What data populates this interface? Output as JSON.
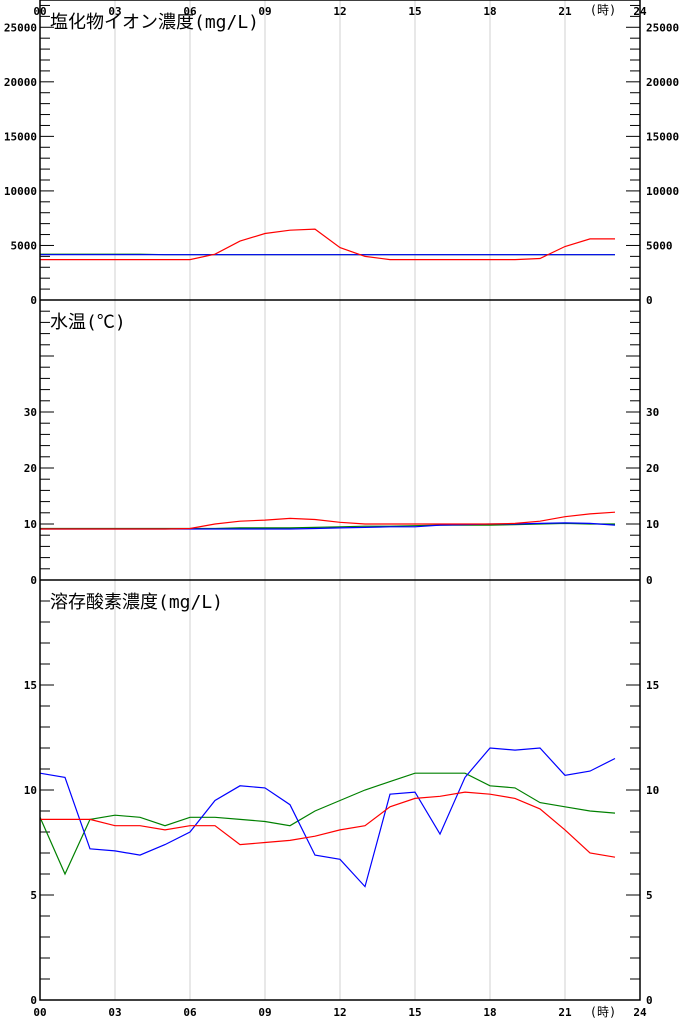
{
  "x_axis": {
    "ticks": [
      "00",
      "03",
      "06",
      "09",
      "12",
      "15",
      "18",
      "21",
      "24"
    ],
    "unit_label": "(時)"
  },
  "chart_data": [
    {
      "type": "line",
      "title": "塩化物イオン濃度(mg/L)",
      "ylim": [
        0,
        27500
      ],
      "yticks": [
        0,
        5000,
        10000,
        15000,
        20000,
        25000
      ],
      "grid": "vertical",
      "x": [
        0,
        1,
        2,
        3,
        4,
        5,
        6,
        7,
        8,
        9,
        10,
        11,
        12,
        13,
        14,
        15,
        16,
        17,
        18,
        19,
        20,
        21,
        22,
        23
      ],
      "series": [
        {
          "color": "#008000",
          "values": [
            4200,
            4200,
            4200,
            4200,
            4200,
            4150,
            4150,
            4150,
            4150,
            4150,
            4150,
            4150,
            4150,
            4150,
            4150,
            4150,
            4150,
            4150,
            4150,
            4150,
            4150,
            4150,
            4150,
            4150
          ]
        },
        {
          "color": "#0000ff",
          "values": [
            4150,
            4150,
            4150,
            4150,
            4150,
            4150,
            4150,
            4150,
            4150,
            4150,
            4150,
            4150,
            4150,
            4150,
            4150,
            4150,
            4150,
            4150,
            4150,
            4150,
            4150,
            4150,
            4150,
            4150
          ]
        },
        {
          "color": "#ff0000",
          "values": [
            3700,
            3700,
            3700,
            3700,
            3700,
            3700,
            3700,
            4200,
            5400,
            6100,
            6400,
            6500,
            4800,
            4000,
            3700,
            3700,
            3700,
            3700,
            3700,
            3700,
            3800,
            4900,
            5600,
            5600
          ]
        }
      ]
    },
    {
      "type": "line",
      "title": "水温(℃)",
      "ylim": [
        0,
        50
      ],
      "yticks": [
        0,
        10,
        20,
        30
      ],
      "grid": "vertical",
      "x": [
        0,
        1,
        2,
        3,
        4,
        5,
        6,
        7,
        8,
        9,
        10,
        11,
        12,
        13,
        14,
        15,
        16,
        17,
        18,
        19,
        20,
        21,
        22,
        23
      ],
      "series": [
        {
          "color": "#008000",
          "values": [
            9.2,
            9.2,
            9.2,
            9.2,
            9.2,
            9.2,
            9.2,
            9.2,
            9.3,
            9.3,
            9.3,
            9.4,
            9.5,
            9.6,
            9.6,
            9.7,
            9.8,
            9.8,
            9.8,
            9.9,
            10.0,
            10.1,
            10.0,
            10.0
          ]
        },
        {
          "color": "#0000ff",
          "values": [
            9.1,
            9.1,
            9.1,
            9.1,
            9.1,
            9.1,
            9.1,
            9.1,
            9.1,
            9.1,
            9.1,
            9.2,
            9.3,
            9.4,
            9.5,
            9.5,
            9.8,
            9.9,
            10.0,
            10.0,
            10.1,
            10.2,
            10.1,
            9.8
          ]
        },
        {
          "color": "#ff0000",
          "values": [
            9.1,
            9.1,
            9.1,
            9.1,
            9.1,
            9.1,
            9.2,
            10.0,
            10.5,
            10.7,
            11.0,
            10.8,
            10.3,
            10.0,
            10.0,
            10.0,
            10.0,
            10.0,
            10.0,
            10.1,
            10.5,
            11.3,
            11.8,
            12.1
          ]
        }
      ]
    },
    {
      "type": "line",
      "title": "溶存酸素濃度(mg/L)",
      "ylim": [
        0,
        20
      ],
      "yticks": [
        0,
        5,
        10,
        15
      ],
      "grid": "vertical",
      "x": [
        0,
        1,
        2,
        3,
        4,
        5,
        6,
        7,
        8,
        9,
        10,
        11,
        12,
        13,
        14,
        15,
        16,
        17,
        18,
        19,
        20,
        21,
        22,
        23
      ],
      "series": [
        {
          "color": "#008000",
          "values": [
            8.7,
            6.0,
            8.6,
            8.8,
            8.7,
            8.3,
            8.7,
            8.7,
            8.6,
            8.5,
            8.3,
            9.0,
            9.5,
            10.0,
            10.4,
            10.8,
            10.8,
            10.8,
            10.2,
            10.1,
            9.4,
            9.2,
            9.0,
            8.9
          ]
        },
        {
          "color": "#0000ff",
          "values": [
            10.8,
            10.6,
            7.2,
            7.1,
            6.9,
            7.4,
            8.0,
            9.5,
            10.2,
            10.1,
            9.3,
            6.9,
            6.7,
            5.4,
            9.8,
            9.9,
            7.9,
            10.6,
            12.0,
            11.9,
            12.0,
            10.7,
            10.9,
            11.5
          ]
        },
        {
          "color": "#ff0000",
          "values": [
            8.6,
            8.6,
            8.6,
            8.3,
            8.3,
            8.1,
            8.3,
            8.3,
            7.4,
            7.5,
            7.6,
            7.8,
            8.1,
            8.3,
            9.2,
            9.6,
            9.7,
            9.9,
            9.8,
            9.6,
            9.1,
            8.1,
            7.0,
            6.8
          ]
        }
      ]
    }
  ]
}
